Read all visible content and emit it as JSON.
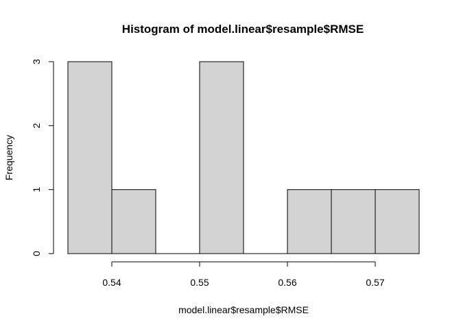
{
  "chart_data": {
    "type": "bar",
    "title": "Histogram of model.linear$resample$RMSE",
    "xlabel": "model.linear$resample$RMSE",
    "ylabel": "Frequency",
    "bins": [
      {
        "start": 0.535,
        "end": 0.54,
        "count": 3
      },
      {
        "start": 0.54,
        "end": 0.545,
        "count": 1
      },
      {
        "start": 0.545,
        "end": 0.55,
        "count": 0
      },
      {
        "start": 0.55,
        "end": 0.555,
        "count": 3
      },
      {
        "start": 0.555,
        "end": 0.56,
        "count": 0
      },
      {
        "start": 0.56,
        "end": 0.565,
        "count": 1
      },
      {
        "start": 0.565,
        "end": 0.57,
        "count": 1
      },
      {
        "start": 0.57,
        "end": 0.575,
        "count": 1
      }
    ],
    "xlim": [
      0.535,
      0.575
    ],
    "ylim": [
      0,
      3
    ],
    "xticks": [
      0.54,
      0.55,
      0.56,
      0.57
    ],
    "xtick_labels": [
      "0.54",
      "0.55",
      "0.56",
      "0.57"
    ],
    "yticks": [
      0,
      1,
      2,
      3
    ],
    "ytick_labels": [
      "0",
      "1",
      "2",
      "3"
    ],
    "grid": false,
    "colors": {
      "bar_fill": "#d3d3d3",
      "bar_stroke": "#000000"
    }
  }
}
